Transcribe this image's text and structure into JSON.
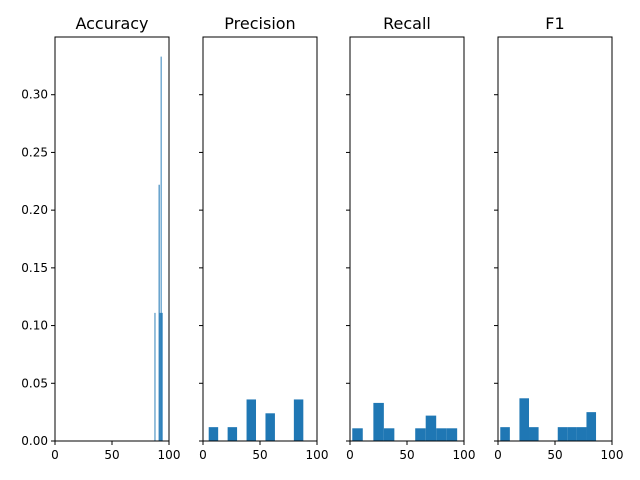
{
  "chart_data": [
    {
      "type": "histogram",
      "title": "Accuracy",
      "xlim": [
        0,
        100
      ],
      "ylim": [
        0,
        0.35
      ],
      "x_ticks": [
        "0",
        "50",
        "100"
      ],
      "y_ticks": [
        "0.00",
        "0.05",
        "0.10",
        "0.15",
        "0.20",
        "0.25",
        "0.30"
      ],
      "bins": [
        {
          "x0": 87.3,
          "x1": 88.1,
          "value": 0.111
        },
        {
          "x0": 90.0,
          "x1": 90.9,
          "value": 0.0
        },
        {
          "x0": 90.9,
          "x1": 91.8,
          "value": 0.222
        },
        {
          "x0": 91.8,
          "x1": 92.7,
          "value": 0.111
        },
        {
          "x0": 92.7,
          "x1": 93.5,
          "value": 0.333
        },
        {
          "x0": 93.5,
          "x1": 94.4,
          "value": 0.111
        }
      ]
    },
    {
      "type": "histogram",
      "title": "Precision",
      "xlim": [
        0,
        100
      ],
      "ylim": [
        0,
        0.35
      ],
      "x_ticks": [
        "0",
        "50",
        "100"
      ],
      "bins": [
        {
          "x0": 5.0,
          "x1": 13.3,
          "value": 0.012
        },
        {
          "x0": 21.6,
          "x1": 29.9,
          "value": 0.012
        },
        {
          "x0": 38.2,
          "x1": 46.5,
          "value": 0.036
        },
        {
          "x0": 54.8,
          "x1": 63.1,
          "value": 0.024
        },
        {
          "x0": 79.7,
          "x1": 88.0,
          "value": 0.036
        }
      ]
    },
    {
      "type": "histogram",
      "title": "Recall",
      "xlim": [
        0,
        100
      ],
      "ylim": [
        0,
        0.35
      ],
      "x_ticks": [
        "0",
        "50",
        "100"
      ],
      "bins": [
        {
          "x0": 2.0,
          "x1": 11.2,
          "value": 0.011
        },
        {
          "x0": 20.5,
          "x1": 29.7,
          "value": 0.033
        },
        {
          "x0": 29.7,
          "x1": 38.9,
          "value": 0.011
        },
        {
          "x0": 57.2,
          "x1": 66.4,
          "value": 0.011
        },
        {
          "x0": 66.4,
          "x1": 75.6,
          "value": 0.022
        },
        {
          "x0": 75.6,
          "x1": 84.8,
          "value": 0.011
        },
        {
          "x0": 84.8,
          "x1": 94.0,
          "value": 0.011
        }
      ]
    },
    {
      "type": "histogram",
      "title": "F1",
      "xlim": [
        0,
        100
      ],
      "ylim": [
        0,
        0.35
      ],
      "x_ticks": [
        "0",
        "50",
        "100"
      ],
      "bins": [
        {
          "x0": 2.0,
          "x1": 10.4,
          "value": 0.012
        },
        {
          "x0": 18.8,
          "x1": 27.2,
          "value": 0.037
        },
        {
          "x0": 27.2,
          "x1": 35.6,
          "value": 0.012
        },
        {
          "x0": 52.4,
          "x1": 60.8,
          "value": 0.012
        },
        {
          "x0": 60.8,
          "x1": 69.2,
          "value": 0.012
        },
        {
          "x0": 69.2,
          "x1": 77.6,
          "value": 0.012
        },
        {
          "x0": 77.6,
          "x1": 86.0,
          "value": 0.025
        }
      ]
    }
  ],
  "colors": {
    "bar": "#1f77b4",
    "axis": "#000000",
    "text": "#000000",
    "background": "#ffffff"
  }
}
